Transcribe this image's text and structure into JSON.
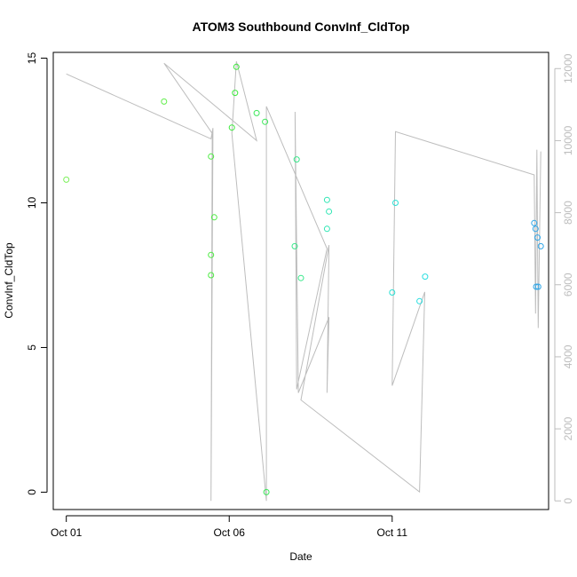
{
  "chart_data": {
    "type": "scatter",
    "title": "ATOM3 Southbound ConvInf_CldTop",
    "xlabel": "Date",
    "ylabel": "ConvInf_CldTop",
    "x_ticks": [
      {
        "value": 1,
        "label": "Oct 01"
      },
      {
        "value": 6,
        "label": "Oct 06"
      },
      {
        "value": 11,
        "label": "Oct 11"
      }
    ],
    "xlim": [
      0.6,
      15.8
    ],
    "ylim": [
      -0.6,
      15.2
    ],
    "y_ticks": [
      0,
      5,
      10,
      15
    ],
    "y2lim": [
      -240,
      12450
    ],
    "y2_ticks": [
      0,
      2000,
      4000,
      6000,
      8000,
      10000,
      12000
    ],
    "y2_color": "#bdbdbd",
    "grid": false,
    "legend": "none",
    "scatter_series": {
      "marker": "open-circle",
      "points": [
        {
          "date": "Oct 01 00:00",
          "x": 1.0,
          "y": 10.8,
          "color": "#7cf05a"
        },
        {
          "date": "Oct 04 00:00",
          "x": 4.0,
          "y": 13.5,
          "color": "#62ee4c"
        },
        {
          "date": "Oct 05 10:35",
          "x": 5.44,
          "y": 11.6,
          "color": "#4eec44"
        },
        {
          "date": "Oct 05 10:35",
          "x": 5.44,
          "y": 8.2,
          "color": "#4eec44"
        },
        {
          "date": "Oct 05 10:35",
          "x": 5.44,
          "y": 7.5,
          "color": "#4eec44"
        },
        {
          "date": "Oct 05 12:58",
          "x": 5.54,
          "y": 9.5,
          "color": "#4eec44"
        },
        {
          "date": "Oct 06 01:55",
          "x": 6.08,
          "y": 12.6,
          "color": "#3cea3c"
        },
        {
          "date": "Oct 06 04:19",
          "x": 6.18,
          "y": 13.8,
          "color": "#3cea3c"
        },
        {
          "date": "Oct 06 05:17",
          "x": 6.22,
          "y": 14.7,
          "color": "#3cea3c"
        },
        {
          "date": "Oct 06 20:10",
          "x": 6.84,
          "y": 13.1,
          "color": "#3ce85a"
        },
        {
          "date": "Oct 07 02:24",
          "x": 7.1,
          "y": 12.8,
          "color": "#3ce85a"
        },
        {
          "date": "Oct 07 03:22",
          "x": 7.14,
          "y": 0.0,
          "color": "#3ce85a"
        },
        {
          "date": "Oct 08 00:14",
          "x": 8.01,
          "y": 8.5,
          "color": "#38e88a"
        },
        {
          "date": "Oct 08 01:41",
          "x": 8.07,
          "y": 11.5,
          "color": "#38e88a"
        },
        {
          "date": "Oct 08 04:48",
          "x": 8.2,
          "y": 7.4,
          "color": "#38e88a"
        },
        {
          "date": "Oct 09 00:00",
          "x": 9.0,
          "y": 10.1,
          "color": "#30e6b4"
        },
        {
          "date": "Oct 09 00:00",
          "x": 9.0,
          "y": 9.1,
          "color": "#30e6b4"
        },
        {
          "date": "Oct 09 01:26",
          "x": 9.06,
          "y": 9.7,
          "color": "#30e6b4"
        },
        {
          "date": "Oct 11 00:00",
          "x": 11.0,
          "y": 6.9,
          "color": "#28e0d4"
        },
        {
          "date": "Oct 11 02:24",
          "x": 11.1,
          "y": 10.0,
          "color": "#28e0d4"
        },
        {
          "date": "Oct 11 20:10",
          "x": 11.84,
          "y": 6.6,
          "color": "#28dee0"
        },
        {
          "date": "Oct 12 00:14",
          "x": 12.01,
          "y": 7.45,
          "color": "#28dee0"
        },
        {
          "date": "Oct 15 08:38",
          "x": 15.36,
          "y": 9.3,
          "color": "#2fa6e8"
        },
        {
          "date": "Oct 15 09:36",
          "x": 15.4,
          "y": 9.1,
          "color": "#2fa6e8"
        },
        {
          "date": "Oct 15 10:05",
          "x": 15.42,
          "y": 7.1,
          "color": "#2fa6e8"
        },
        {
          "date": "Oct 15 11:02",
          "x": 15.46,
          "y": 8.8,
          "color": "#2fa6e8"
        },
        {
          "date": "Oct 15 11:31",
          "x": 15.48,
          "y": 7.1,
          "color": "#2fa6e8"
        },
        {
          "date": "Oct 15 13:26",
          "x": 15.56,
          "y": 8.5,
          "color": "#2fa6e8"
        }
      ]
    },
    "line_series": {
      "axis": "right",
      "color": "#bdbdbd",
      "points": [
        {
          "x": 1.0,
          "y": 11850
        },
        {
          "x": 5.44,
          "y": 10050
        },
        {
          "x": 5.5,
          "y": 10350
        },
        {
          "x": 5.44,
          "y": 0
        },
        {
          "x": 5.48,
          "y": 10200
        },
        {
          "x": 4.0,
          "y": 12150
        },
        {
          "x": 6.84,
          "y": 10000
        },
        {
          "x": 6.22,
          "y": 12200
        },
        {
          "x": 6.08,
          "y": 10200
        },
        {
          "x": 7.14,
          "y": 0
        },
        {
          "x": 7.14,
          "y": 10950
        },
        {
          "x": 9.0,
          "y": 7000
        },
        {
          "x": 8.07,
          "y": 3100
        },
        {
          "x": 8.02,
          "y": 10800
        },
        {
          "x": 8.12,
          "y": 3000
        },
        {
          "x": 9.06,
          "y": 5100
        },
        {
          "x": 9.0,
          "y": 3000
        },
        {
          "x": 9.06,
          "y": 7100
        },
        {
          "x": 8.2,
          "y": 2800
        },
        {
          "x": 11.84,
          "y": 250
        },
        {
          "x": 12.0,
          "y": 5800
        },
        {
          "x": 11.0,
          "y": 3200
        },
        {
          "x": 11.1,
          "y": 10250
        },
        {
          "x": 15.36,
          "y": 9050
        },
        {
          "x": 15.4,
          "y": 5200
        },
        {
          "x": 15.44,
          "y": 9750
        },
        {
          "x": 15.48,
          "y": 4800
        },
        {
          "x": 15.56,
          "y": 9700
        }
      ]
    }
  }
}
